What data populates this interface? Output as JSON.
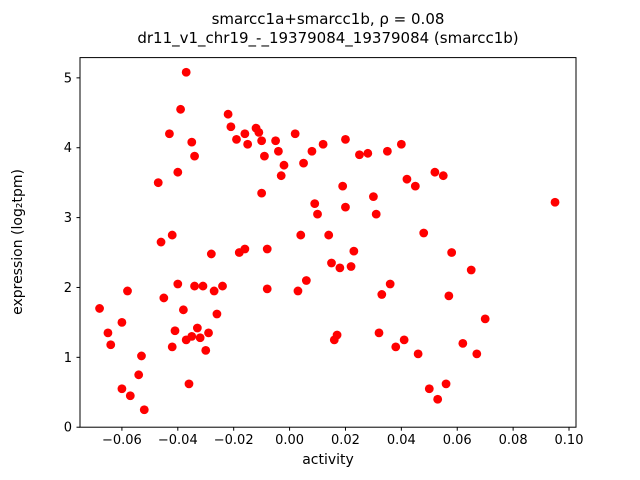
{
  "title": {
    "line1": "smarcc1a+smarcc1b, ρ = 0.08",
    "line2": "dr11_v1_chr19_-_19379084_19379084 (smarcc1b)"
  },
  "chart_data": {
    "type": "scatter",
    "title": "smarcc1a+smarcc1b, ρ = 0.08",
    "subtitle": "dr11_v1_chr19_-_19379084_19379084 (smarcc1b)",
    "xlabel": "activity",
    "ylabel": "expression (log₂tpm)",
    "xlim": [
      -0.075,
      0.1025
    ],
    "ylim": [
      0,
      5.29
    ],
    "xticks": [
      -0.06,
      -0.04,
      -0.02,
      0.0,
      0.02,
      0.04,
      0.06,
      0.08,
      0.1
    ],
    "yticks": [
      0,
      1,
      2,
      3,
      4,
      5
    ],
    "grid": false,
    "legend": "none",
    "marker_color": "#ff0000",
    "marker_radius": 4.4,
    "points": [
      [
        -0.068,
        1.7
      ],
      [
        -0.065,
        1.35
      ],
      [
        -0.064,
        1.18
      ],
      [
        -0.06,
        1.5
      ],
      [
        -0.058,
        1.95
      ],
      [
        -0.06,
        0.55
      ],
      [
        -0.057,
        0.45
      ],
      [
        -0.054,
        0.75
      ],
      [
        -0.053,
        1.02
      ],
      [
        -0.052,
        0.25
      ],
      [
        -0.047,
        3.5
      ],
      [
        -0.046,
        2.65
      ],
      [
        -0.045,
        1.85
      ],
      [
        -0.043,
        4.2
      ],
      [
        -0.042,
        2.75
      ],
      [
        -0.042,
        1.15
      ],
      [
        -0.041,
        1.38
      ],
      [
        -0.04,
        3.65
      ],
      [
        -0.039,
        4.55
      ],
      [
        -0.037,
        5.08
      ],
      [
        -0.04,
        2.05
      ],
      [
        -0.038,
        1.68
      ],
      [
        -0.037,
        1.25
      ],
      [
        -0.036,
        0.62
      ],
      [
        -0.035,
        1.3
      ],
      [
        -0.035,
        4.08
      ],
      [
        -0.034,
        3.88
      ],
      [
        -0.034,
        2.02
      ],
      [
        -0.033,
        1.42
      ],
      [
        -0.032,
        1.28
      ],
      [
        -0.031,
        2.02
      ],
      [
        -0.03,
        1.1
      ],
      [
        -0.029,
        1.35
      ],
      [
        -0.028,
        2.48
      ],
      [
        -0.027,
        1.95
      ],
      [
        -0.026,
        1.62
      ],
      [
        -0.024,
        2.02
      ],
      [
        -0.022,
        4.48
      ],
      [
        -0.021,
        4.3
      ],
      [
        -0.019,
        4.12
      ],
      [
        -0.018,
        2.5
      ],
      [
        -0.016,
        2.55
      ],
      [
        -0.016,
        4.2
      ],
      [
        -0.015,
        4.05
      ],
      [
        -0.012,
        4.28
      ],
      [
        -0.011,
        4.22
      ],
      [
        -0.01,
        4.1
      ],
      [
        -0.01,
        3.35
      ],
      [
        -0.009,
        3.88
      ],
      [
        -0.008,
        2.55
      ],
      [
        -0.008,
        1.98
      ],
      [
        -0.005,
        4.1
      ],
      [
        -0.004,
        3.95
      ],
      [
        -0.003,
        3.6
      ],
      [
        -0.002,
        3.75
      ],
      [
        0.002,
        4.2
      ],
      [
        0.003,
        1.95
      ],
      [
        0.004,
        2.75
      ],
      [
        0.005,
        3.78
      ],
      [
        0.006,
        2.1
      ],
      [
        0.008,
        3.95
      ],
      [
        0.009,
        3.2
      ],
      [
        0.01,
        3.05
      ],
      [
        0.012,
        4.05
      ],
      [
        0.014,
        2.75
      ],
      [
        0.015,
        2.35
      ],
      [
        0.016,
        1.25
      ],
      [
        0.017,
        1.32
      ],
      [
        0.018,
        2.28
      ],
      [
        0.019,
        3.45
      ],
      [
        0.02,
        4.12
      ],
      [
        0.02,
        3.15
      ],
      [
        0.022,
        2.3
      ],
      [
        0.023,
        2.52
      ],
      [
        0.025,
        3.9
      ],
      [
        0.028,
        3.92
      ],
      [
        0.03,
        3.3
      ],
      [
        0.031,
        3.05
      ],
      [
        0.032,
        1.35
      ],
      [
        0.033,
        1.9
      ],
      [
        0.035,
        3.95
      ],
      [
        0.036,
        2.05
      ],
      [
        0.038,
        1.15
      ],
      [
        0.04,
        4.05
      ],
      [
        0.041,
        1.25
      ],
      [
        0.042,
        3.55
      ],
      [
        0.045,
        3.45
      ],
      [
        0.046,
        1.05
      ],
      [
        0.048,
        2.78
      ],
      [
        0.05,
        0.55
      ],
      [
        0.052,
        3.65
      ],
      [
        0.053,
        0.4
      ],
      [
        0.055,
        3.6
      ],
      [
        0.056,
        0.62
      ],
      [
        0.057,
        1.88
      ],
      [
        0.058,
        2.5
      ],
      [
        0.062,
        1.2
      ],
      [
        0.065,
        2.25
      ],
      [
        0.067,
        1.05
      ],
      [
        0.07,
        1.55
      ],
      [
        0.095,
        3.22
      ]
    ]
  }
}
